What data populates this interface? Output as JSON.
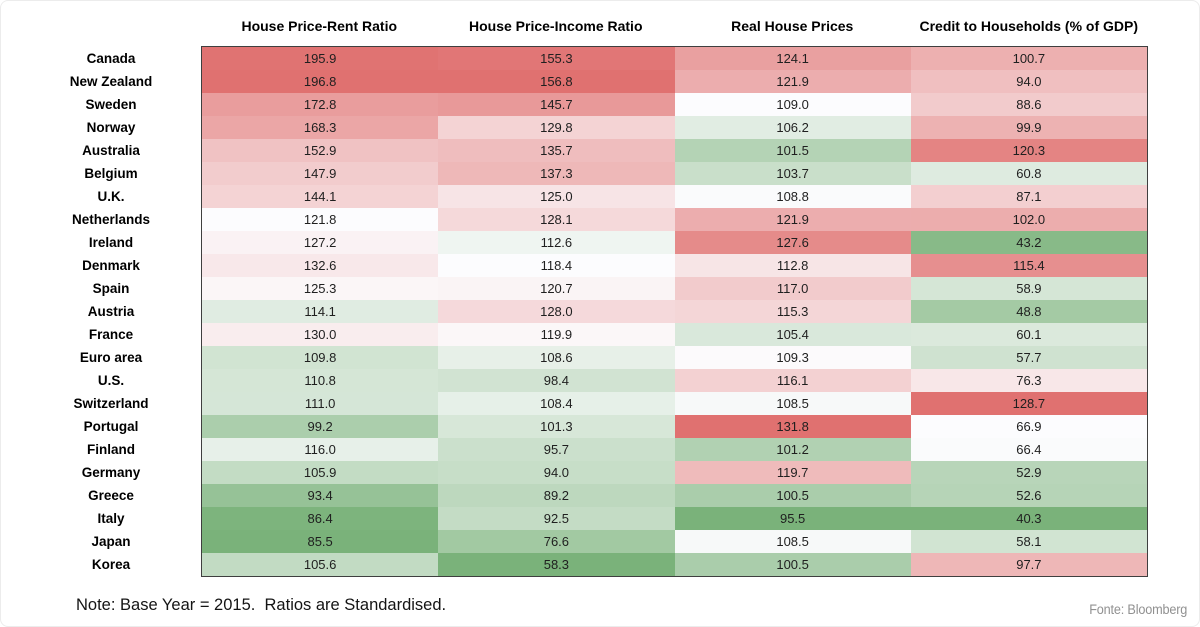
{
  "note": "Note: Base Year = 2015.  Ratios are Standardised.",
  "source": "Fonte: Bloomberg",
  "chart_data": {
    "type": "heatmap",
    "columns": [
      "House Price-Rent Ratio",
      "House Price-Income Ratio",
      "Real House Prices",
      "Credit to Households (% of GDP)"
    ],
    "rows": [
      "Canada",
      "New Zealand",
      "Sweden",
      "Norway",
      "Australia",
      "Belgium",
      "U.K.",
      "Netherlands",
      "Ireland",
      "Denmark",
      "Spain",
      "Austria",
      "France",
      "Euro area",
      "U.S.",
      "Switzerland",
      "Portugal",
      "Finland",
      "Germany",
      "Greece",
      "Italy",
      "Japan",
      "Korea"
    ],
    "values": [
      [
        195.9,
        155.3,
        124.1,
        100.7
      ],
      [
        196.8,
        156.8,
        121.9,
        94.0
      ],
      [
        172.8,
        145.7,
        109.0,
        88.6
      ],
      [
        168.3,
        129.8,
        106.2,
        99.9
      ],
      [
        152.9,
        135.7,
        101.5,
        120.3
      ],
      [
        147.9,
        137.3,
        103.7,
        60.8
      ],
      [
        144.1,
        125.0,
        108.8,
        87.1
      ],
      [
        121.8,
        128.1,
        121.9,
        102.0
      ],
      [
        127.2,
        112.6,
        127.6,
        43.2
      ],
      [
        132.6,
        118.4,
        112.8,
        115.4
      ],
      [
        125.3,
        120.7,
        117.0,
        58.9
      ],
      [
        114.1,
        128.0,
        115.3,
        48.8
      ],
      [
        130.0,
        119.9,
        105.4,
        60.1
      ],
      [
        109.8,
        108.6,
        109.3,
        57.7
      ],
      [
        110.8,
        98.4,
        116.1,
        76.3
      ],
      [
        111.0,
        108.4,
        108.5,
        128.7
      ],
      [
        99.2,
        101.3,
        131.8,
        66.9
      ],
      [
        116.0,
        95.7,
        101.2,
        66.4
      ],
      [
        105.9,
        94.0,
        119.7,
        52.9
      ],
      [
        93.4,
        89.2,
        100.5,
        52.6
      ],
      [
        86.4,
        92.5,
        95.5,
        40.3
      ],
      [
        85.5,
        76.6,
        108.5,
        58.1
      ],
      [
        105.6,
        58.3,
        100.5,
        97.7
      ]
    ],
    "color_scale": {
      "low_color": "#7AB27A",
      "mid_color": "#FCFCFE",
      "high_color": "#E07170",
      "midpoint": "50th percentile per column",
      "normalization": "per column"
    },
    "legend": "none",
    "grid": "off",
    "value_format": "one decimal"
  }
}
